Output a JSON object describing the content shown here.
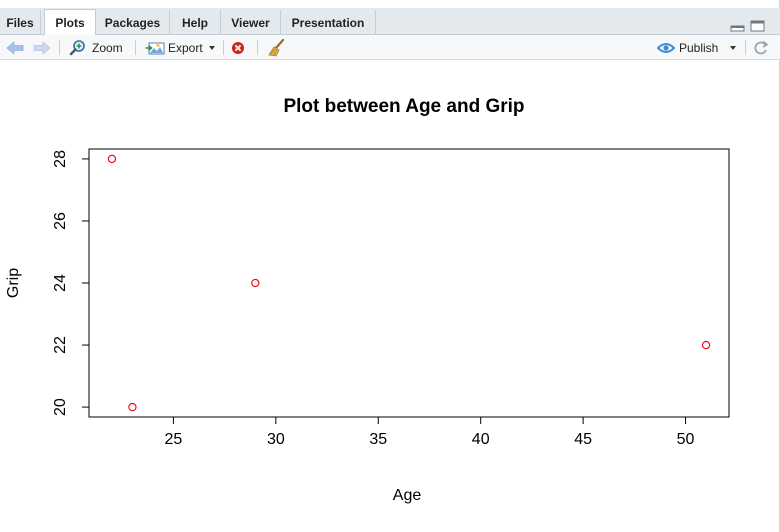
{
  "tabs": [
    {
      "label": "Files",
      "active": false
    },
    {
      "label": "Plots",
      "active": true
    },
    {
      "label": "Packages",
      "active": false
    },
    {
      "label": "Help",
      "active": false
    },
    {
      "label": "Viewer",
      "active": false
    },
    {
      "label": "Presentation",
      "active": false
    }
  ],
  "toolbar": {
    "zoom_label": "Zoom",
    "export_label": "Export",
    "publish_label": "Publish"
  },
  "colors": {
    "point": "#e8000b",
    "publish_icon": "#3a8fd8",
    "remove_icon": "#d0221c",
    "nav_arrow": "#a7c4e6"
  },
  "chart_data": {
    "type": "scatter",
    "title": "Plot between Age and Grip",
    "xlabel": "Age",
    "ylabel": "Grip",
    "x": [
      22,
      23,
      29,
      51
    ],
    "y": [
      28,
      20,
      24,
      22
    ],
    "xlim": [
      20.88,
      52.12
    ],
    "ylim": [
      19.68,
      28.32
    ],
    "xticks": [
      25,
      30,
      35,
      40,
      45,
      50
    ],
    "yticks": [
      20,
      22,
      24,
      26,
      28
    ],
    "marker": "open-circle",
    "grid": false,
    "legend": "none"
  }
}
